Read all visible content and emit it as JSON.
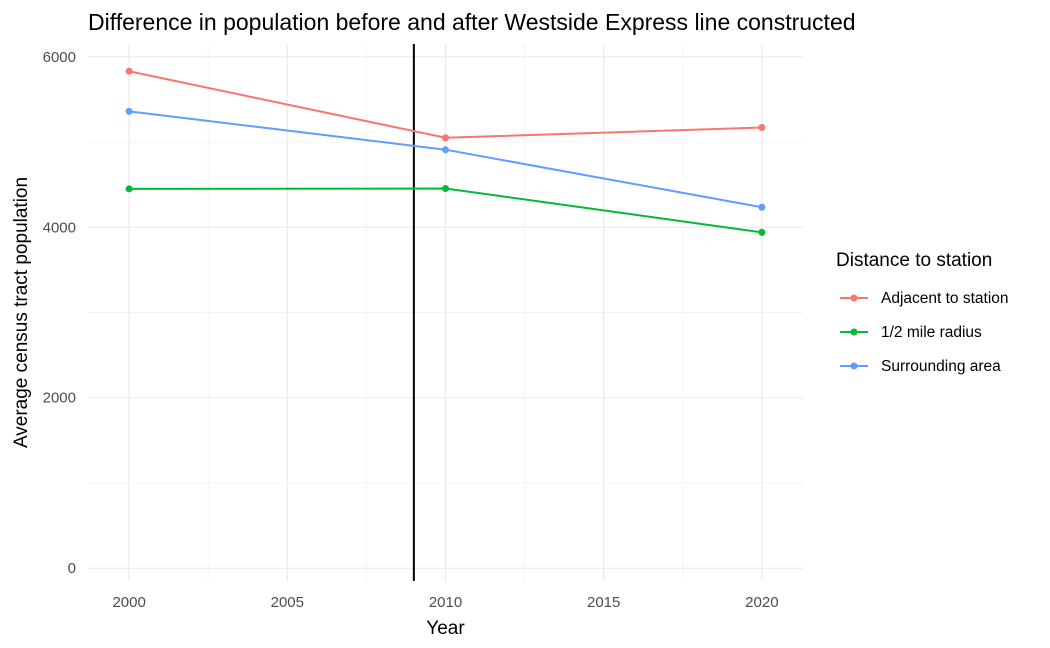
{
  "chart_data": {
    "type": "line",
    "title": "Difference in population before and after Westside Express line constructed",
    "xlabel": "Year",
    "ylabel": "Average census tract population",
    "x": [
      2000,
      2010,
      2020
    ],
    "xlim": [
      1998.7,
      2021.3
    ],
    "ylim": [
      -150,
      6150
    ],
    "x_ticks": [
      2000,
      2005,
      2010,
      2015,
      2020
    ],
    "y_ticks": [
      0,
      2000,
      4000,
      6000
    ],
    "grid": true,
    "vline": 2009,
    "vline_color": "#000000",
    "legend": {
      "title": "Distance to station",
      "placement": "right"
    },
    "series": [
      {
        "name": "Adjacent to station",
        "color": "#F8766D",
        "values": [
          5830,
          5050,
          5170
        ]
      },
      {
        "name": "1/2 mile radius",
        "color": "#00BA38",
        "values": [
          4450,
          4455,
          3940
        ]
      },
      {
        "name": "Surrounding area",
        "color": "#619CFF",
        "values": [
          5360,
          4910,
          4235
        ]
      }
    ]
  }
}
